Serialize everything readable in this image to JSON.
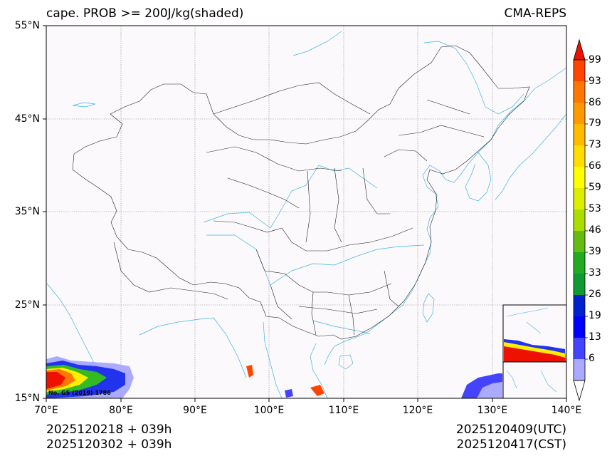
{
  "header": {
    "title": "cape. PROB >= 200J/kg(shaded)",
    "model": "CMA-REPS"
  },
  "axes": {
    "lat_labels": [
      "55°N",
      "45°N",
      "35°N",
      "25°N",
      "15°N"
    ],
    "lon_labels": [
      "70°E",
      "80°E",
      "90°E",
      "100°E",
      "110°E",
      "120°E",
      "130°E",
      "140°E"
    ]
  },
  "colorbar": {
    "levels": [
      "99",
      "93",
      "86",
      "79",
      "73",
      "66",
      "59",
      "53",
      "46",
      "39",
      "33",
      "26",
      "19",
      "13",
      "6"
    ],
    "colors": [
      "#ee1100",
      "#ff4400",
      "#ff7700",
      "#ff9900",
      "#ffbb00",
      "#ffdd00",
      "#ffff00",
      "#ddee00",
      "#aadd00",
      "#66bb11",
      "#22aa22",
      "#119933",
      "#0022cc",
      "#0000ff",
      "#4444ff",
      "#aaaaff"
    ]
  },
  "map": {
    "watermark": "No. GS (2019) 1786"
  },
  "footer": {
    "init_time_utc": "2025120218  +  039h",
    "init_time_cst": "2025120302  +  039h",
    "valid_utc": "2025120409(UTC)",
    "valid_cst": "2025120417(CST)"
  }
}
